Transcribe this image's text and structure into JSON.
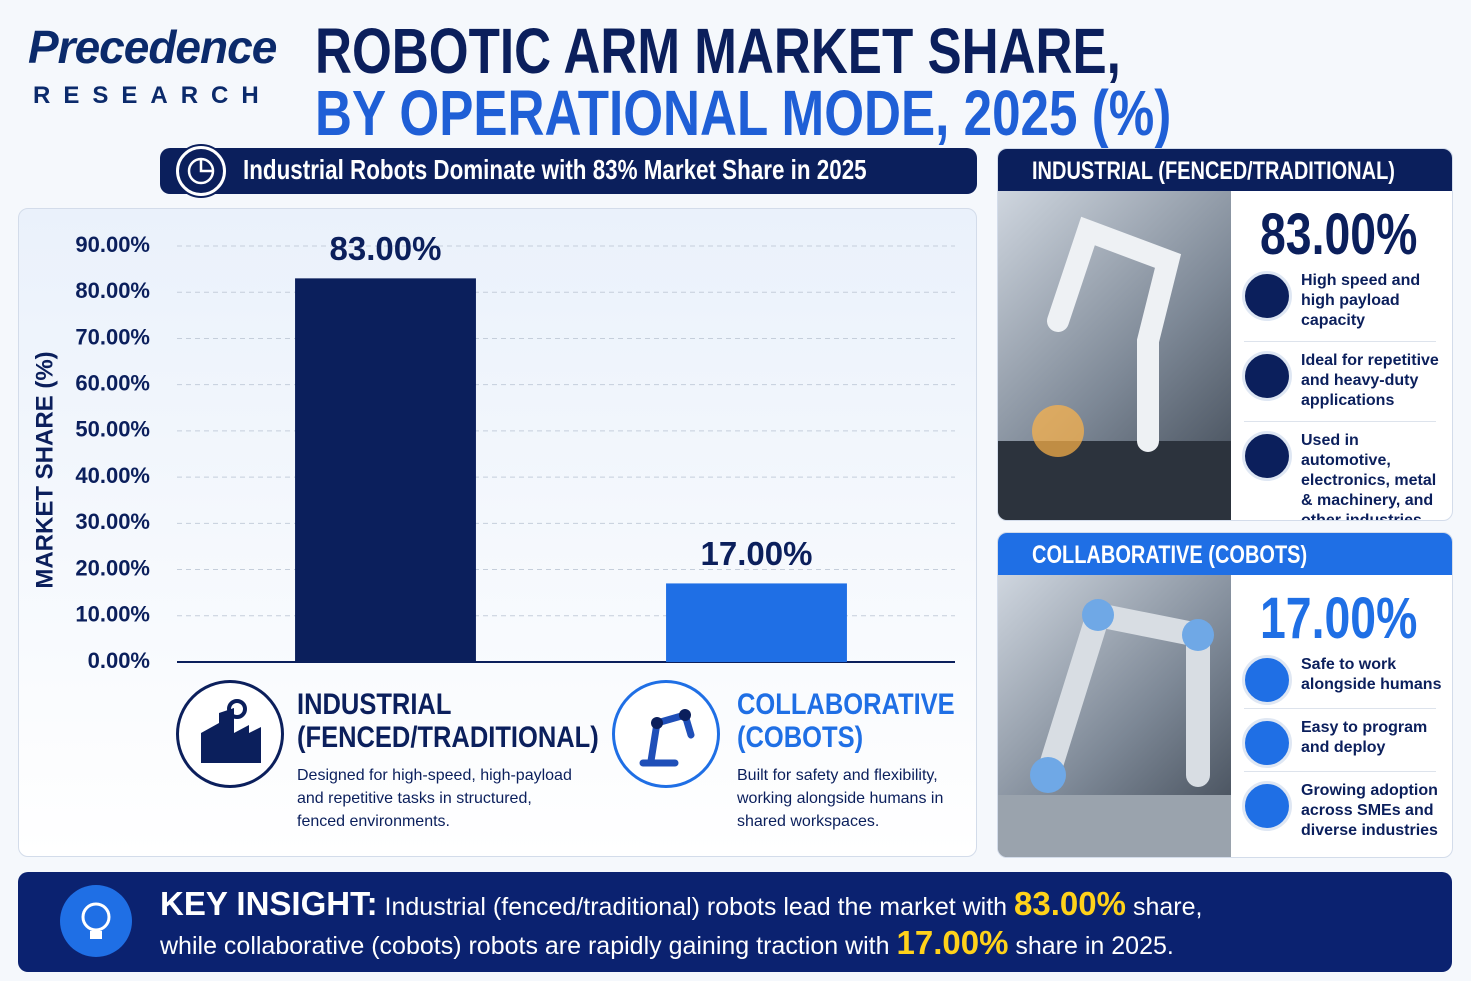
{
  "logo": {
    "name": "Precedence",
    "tagline": "RESEARCH"
  },
  "title": {
    "line_1": "ROBOTIC ARM MARKET SHARE,",
    "line_2": "BY OPERATIONAL MODE, 2025 (%)"
  },
  "banner": "Industrial Robots Dominate with 83% Market Share in 2025",
  "chart_data": {
    "type": "bar",
    "y_label": "MARKET SHARE (%)",
    "categories": [
      "INDUSTRIAL (FENCED/TRADITIONAL)",
      "COLLABORATIVE (COBOTS)"
    ],
    "values": [
      83,
      17
    ],
    "value_labels": [
      "83.00%",
      "17.00%"
    ],
    "colors": [
      "#0b1f5c",
      "#1f6fe5"
    ],
    "ylim": [
      0,
      90
    ],
    "yticks": [
      {
        "value": 0,
        "label": "0.00%"
      },
      {
        "value": 10,
        "label": "10.00%"
      },
      {
        "value": 20,
        "label": "20.00%"
      },
      {
        "value": 30,
        "label": "30.00%"
      },
      {
        "value": 40,
        "label": "40.00%"
      },
      {
        "value": 50,
        "label": "50.00%"
      },
      {
        "value": 60,
        "label": "60.00%"
      },
      {
        "value": 70,
        "label": "70.00%"
      },
      {
        "value": 80,
        "label": "80.00%"
      },
      {
        "value": 90,
        "label": "90.00%"
      }
    ],
    "grid": true
  },
  "category_descriptions": [
    "Designed for high-speed, high-payload and repetitive tasks in structured, fenced environments.",
    "Built for safety and flexibility, working alongside humans in shared workspaces."
  ],
  "panels": [
    {
      "features": [
        "High speed and high payload capacity",
        "Ideal for repetitive and heavy-duty applications",
        "Used in automotive, electronics, metal & machinery, and other industries"
      ]
    },
    {
      "features": [
        "Safe to work alongside humans",
        "Easy to program and deploy",
        "Growing adoption across SMEs and diverse industries"
      ]
    }
  ],
  "key_insight": {
    "label": "KEY INSIGHT:",
    "text_1": "Industrial (fenced/traditional) robots lead the market with",
    "text_2": "share,",
    "text_3": "while collaborative (cobots) robots are rapidly gaining traction with",
    "text_4": "share in 2025."
  }
}
